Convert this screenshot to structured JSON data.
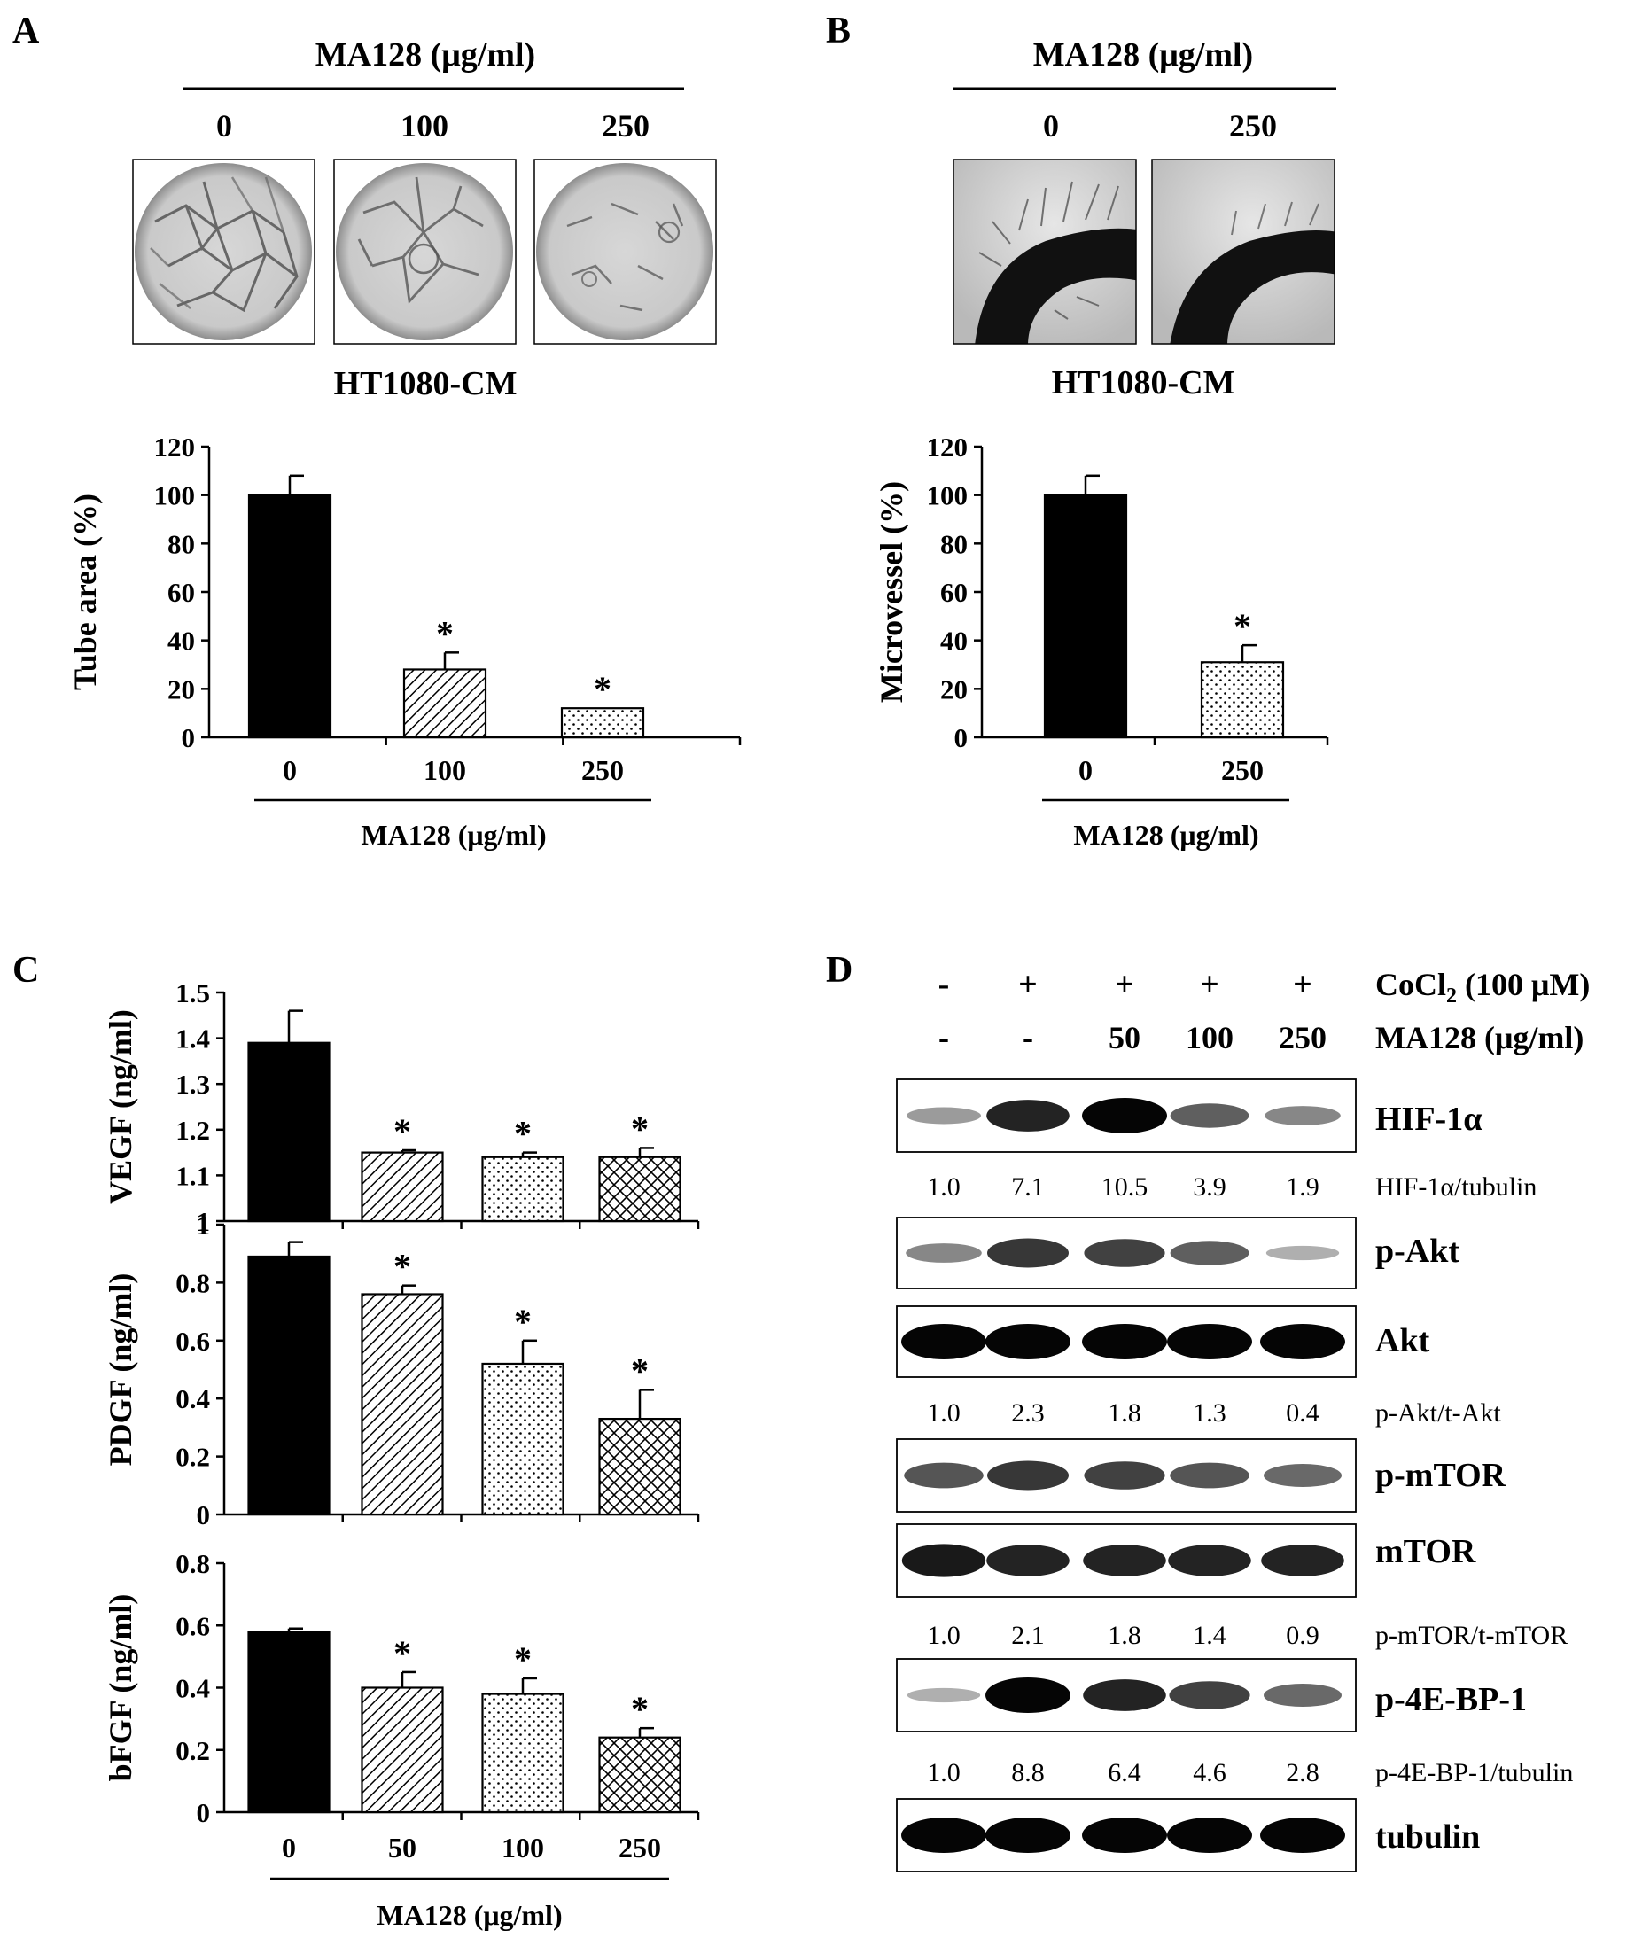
{
  "figure": {
    "panel_labels": [
      "A",
      "B",
      "C",
      "D"
    ],
    "asterisk": "*",
    "panelA": {
      "treatment_header": "MA128 (μg/ml)",
      "doses": [
        "0",
        "100",
        "250"
      ],
      "image_caption": "HT1080-CM",
      "images": [
        "tube-formation-0",
        "tube-formation-100",
        "tube-formation-250"
      ]
    },
    "panelB": {
      "treatment_header": "MA128 (μg/ml)",
      "doses": [
        "0",
        "250"
      ],
      "image_caption": "HT1080-CM",
      "images": [
        "aortic-ring-0",
        "aortic-ring-250"
      ]
    },
    "panelD": {
      "cocl2_signs": [
        "-",
        "+",
        "+",
        "+",
        "+"
      ],
      "cocl2_label": "CoCl",
      "cocl2_sub": "2",
      "cocl2_rest": " (100 μM)",
      "ma_doses": [
        "-",
        "-",
        "50",
        "100",
        "250"
      ],
      "ma_label": "MA128 (μg/ml)",
      "blots": [
        {
          "name": "HIF-1α",
          "intensity": [
            0.25,
            0.85,
            1.0,
            0.55,
            0.35
          ]
        },
        {
          "name": "p-Akt",
          "intensity": [
            0.35,
            0.75,
            0.7,
            0.55,
            0.15
          ]
        },
        {
          "name": "Akt",
          "intensity": [
            1.0,
            1.0,
            1.0,
            1.0,
            1.0
          ]
        },
        {
          "name": "p-mTOR",
          "intensity": [
            0.6,
            0.75,
            0.7,
            0.6,
            0.5
          ]
        },
        {
          "name": "mTOR",
          "intensity": [
            0.9,
            0.85,
            0.85,
            0.85,
            0.85
          ]
        },
        {
          "name": "p-4E-BP-1",
          "intensity": [
            0.15,
            1.0,
            0.85,
            0.7,
            0.5
          ]
        },
        {
          "name": "tubulin",
          "intensity": [
            1.0,
            1.0,
            1.0,
            1.0,
            1.0
          ]
        }
      ],
      "quant": [
        {
          "label": "HIF-1α/tubulin",
          "values": [
            "1.0",
            "7.1",
            "10.5",
            "3.9",
            "1.9"
          ]
        },
        {
          "label": "p-Akt/t-Akt",
          "values": [
            "1.0",
            "2.3",
            "1.8",
            "1.3",
            "0.4"
          ]
        },
        {
          "label": "p-mTOR/t-mTOR",
          "values": [
            "1.0",
            "2.1",
            "1.8",
            "1.4",
            "0.9"
          ]
        },
        {
          "label": "p-4E-BP-1/tubulin",
          "values": [
            "1.0",
            "8.8",
            "6.4",
            "4.6",
            "2.8"
          ]
        }
      ]
    }
  },
  "chart_data": [
    {
      "panel": "A",
      "type": "bar",
      "categories": [
        "0",
        "100",
        "250"
      ],
      "values": [
        100,
        28,
        12
      ],
      "errors": [
        8,
        7,
        0
      ],
      "significant": [
        false,
        true,
        true
      ],
      "patterns": [
        "solid",
        "diag",
        "dots"
      ],
      "xlabel": "MA128 (μg/ml)",
      "ylabel": "Tube area (%)",
      "ylim": [
        0,
        120
      ],
      "yticks": [
        "0",
        "20",
        "40",
        "60",
        "80",
        "100",
        "120"
      ]
    },
    {
      "panel": "B",
      "type": "bar",
      "categories": [
        "0",
        "250"
      ],
      "values": [
        100,
        31
      ],
      "errors": [
        8,
        7
      ],
      "significant": [
        false,
        true
      ],
      "patterns": [
        "solid",
        "dots"
      ],
      "xlabel": "MA128 (μg/ml)",
      "ylabel": "Microvessel (%)",
      "ylim": [
        0,
        120
      ],
      "yticks": [
        "0",
        "20",
        "40",
        "60",
        "80",
        "100",
        "120"
      ]
    },
    {
      "panel": "C",
      "type": "bar",
      "categories": [
        "0",
        "50",
        "100",
        "250"
      ],
      "values": [
        1.39,
        1.15,
        1.14,
        1.14
      ],
      "errors": [
        0.07,
        0.005,
        0.01,
        0.02
      ],
      "significant": [
        false,
        true,
        true,
        true
      ],
      "patterns": [
        "solid",
        "diag",
        "dots",
        "cross"
      ],
      "xlabel": "",
      "ylabel": "VEGF (ng/ml)",
      "ylim": [
        1,
        1.5
      ],
      "yticks": [
        "1",
        "1.1",
        "1.2",
        "1.3",
        "1.4",
        "1.5"
      ]
    },
    {
      "panel": "C",
      "type": "bar",
      "categories": [
        "0",
        "50",
        "100",
        "250"
      ],
      "values": [
        0.89,
        0.76,
        0.52,
        0.33
      ],
      "errors": [
        0.05,
        0.03,
        0.08,
        0.1
      ],
      "significant": [
        false,
        true,
        true,
        true
      ],
      "patterns": [
        "solid",
        "diag",
        "dots",
        "cross"
      ],
      "xlabel": "",
      "ylabel": "PDGF (ng/ml)",
      "ylim": [
        0,
        1
      ],
      "yticks": [
        "0",
        "0.2",
        "0.4",
        "0.6",
        "0.8",
        "1"
      ]
    },
    {
      "panel": "C",
      "type": "bar",
      "categories": [
        "0",
        "50",
        "100",
        "250"
      ],
      "values": [
        0.58,
        0.4,
        0.38,
        0.24
      ],
      "errors": [
        0.01,
        0.05,
        0.05,
        0.03
      ],
      "significant": [
        false,
        true,
        true,
        true
      ],
      "patterns": [
        "solid",
        "diag",
        "dots",
        "cross"
      ],
      "xlabel": "MA128 (μg/ml)",
      "ylabel": "bFGF (ng/ml)",
      "ylim": [
        0,
        0.8
      ],
      "yticks": [
        "0",
        "0.2",
        "0.4",
        "0.6",
        "0.8"
      ],
      "show_xticks": true
    }
  ]
}
